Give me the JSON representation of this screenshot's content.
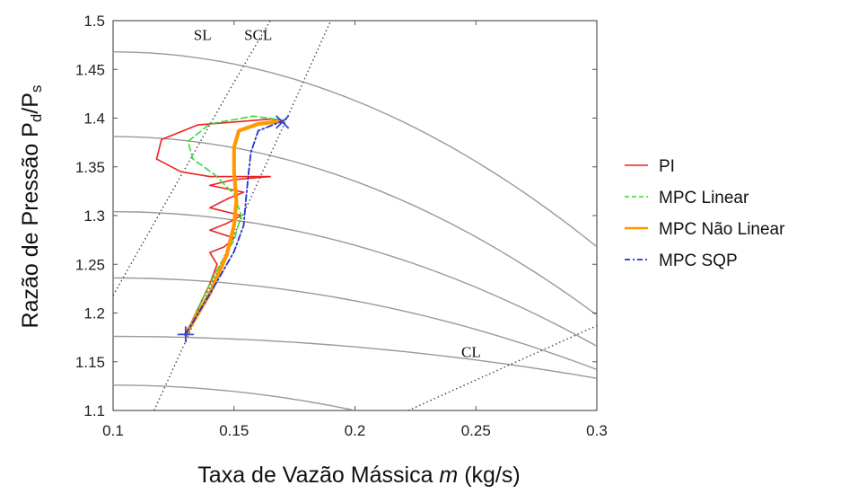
{
  "chart_data": {
    "type": "line",
    "xlabel": "Taxa de Vazão Mássica m (kg/s)",
    "xlabel_parts": {
      "before": "Taxa de Vazão Mássica ",
      "var": "m",
      "after": " (kg/s)"
    },
    "ylabel": "Razão de Pressão Pd/Ps",
    "ylabel_parts": {
      "main": "Razão de Pressão P",
      "sub1": "d",
      "slash": "/P",
      "sub2": "s"
    },
    "xlim": [
      0.1,
      0.3
    ],
    "ylim": [
      1.1,
      1.5
    ],
    "xticks": [
      "0.1",
      "0.15",
      "0.2",
      "0.25",
      "0.3"
    ],
    "yticks": [
      "1.1",
      "1.15",
      "1.2",
      "1.25",
      "1.3",
      "1.35",
      "1.4",
      "1.45",
      "1.5"
    ],
    "legend_position": "right",
    "grid": false,
    "annotations": [
      {
        "text": "SL",
        "x": 0.137,
        "y": 1.48
      },
      {
        "text": "SCL",
        "x": 0.16,
        "y": 1.48
      },
      {
        "text": "CL",
        "x": 0.248,
        "y": 1.155
      }
    ],
    "speed_lines": [
      {
        "y0": 1.468,
        "x_end": 0.3,
        "y_end": 1.268
      },
      {
        "y0": 1.381,
        "x_end": 0.3,
        "y_end": 1.198
      },
      {
        "y0": 1.304,
        "x_end": 0.3,
        "y_end": 1.166
      },
      {
        "y0": 1.236,
        "x_end": 0.3,
        "y_end": 1.142
      },
      {
        "y0": 1.176,
        "x_end": 0.3,
        "y_end": 1.133
      },
      {
        "y0": 1.126,
        "x_end": 0.2,
        "y_end": 1.1
      }
    ],
    "surge_line": [
      [
        0.1,
        1.218
      ],
      [
        0.15,
        1.437
      ],
      [
        0.165,
        1.5
      ]
    ],
    "surge_control_line": [
      [
        0.117,
        1.1
      ],
      [
        0.171,
        1.395
      ],
      [
        0.19,
        1.5
      ]
    ],
    "control_line": [
      [
        0.222,
        1.1
      ],
      [
        0.3,
        1.187
      ]
    ],
    "start_marker": {
      "x": 0.13,
      "y": 1.178,
      "symbol": "+"
    },
    "end_marker": {
      "x": 0.17,
      "y": 1.396,
      "symbol": "x"
    },
    "series": [
      {
        "name": "PI",
        "color": "#ee2222",
        "dash": "solid",
        "width": 1.6,
        "points": [
          [
            0.13,
            1.178
          ],
          [
            0.14,
            1.23
          ],
          [
            0.143,
            1.25
          ],
          [
            0.14,
            1.262
          ],
          [
            0.146,
            1.268
          ],
          [
            0.15,
            1.277
          ],
          [
            0.14,
            1.285
          ],
          [
            0.147,
            1.292
          ],
          [
            0.153,
            1.3
          ],
          [
            0.14,
            1.308
          ],
          [
            0.148,
            1.318
          ],
          [
            0.154,
            1.324
          ],
          [
            0.14,
            1.331
          ],
          [
            0.15,
            1.337
          ],
          [
            0.165,
            1.34
          ],
          [
            0.14,
            1.34
          ],
          [
            0.128,
            1.345
          ],
          [
            0.118,
            1.358
          ],
          [
            0.12,
            1.378
          ],
          [
            0.135,
            1.393
          ],
          [
            0.165,
            1.399
          ],
          [
            0.17,
            1.398
          ]
        ]
      },
      {
        "name": "MPC Linear",
        "color": "#33dd33",
        "dash": "dashed",
        "width": 1.6,
        "points": [
          [
            0.13,
            1.178
          ],
          [
            0.142,
            1.24
          ],
          [
            0.15,
            1.275
          ],
          [
            0.153,
            1.3
          ],
          [
            0.15,
            1.322
          ],
          [
            0.142,
            1.342
          ],
          [
            0.133,
            1.358
          ],
          [
            0.131,
            1.376
          ],
          [
            0.14,
            1.394
          ],
          [
            0.158,
            1.402
          ],
          [
            0.17,
            1.398
          ]
        ]
      },
      {
        "name": "MPC Não Linear",
        "color": "#ff9900",
        "dash": "solid",
        "width": 4.2,
        "points": [
          [
            0.13,
            1.178
          ],
          [
            0.14,
            1.22
          ],
          [
            0.147,
            1.26
          ],
          [
            0.15,
            1.29
          ],
          [
            0.151,
            1.315
          ],
          [
            0.15,
            1.345
          ],
          [
            0.15,
            1.37
          ],
          [
            0.152,
            1.387
          ],
          [
            0.16,
            1.394
          ],
          [
            0.17,
            1.397
          ]
        ]
      },
      {
        "name": "MPC SQP",
        "color": "#2233cc",
        "dash": "dashdot",
        "width": 1.8,
        "points": [
          [
            0.13,
            1.178
          ],
          [
            0.142,
            1.228
          ],
          [
            0.15,
            1.263
          ],
          [
            0.154,
            1.29
          ],
          [
            0.155,
            1.318
          ],
          [
            0.156,
            1.343
          ],
          [
            0.157,
            1.365
          ],
          [
            0.16,
            1.387
          ],
          [
            0.17,
            1.397
          ]
        ]
      }
    ]
  }
}
